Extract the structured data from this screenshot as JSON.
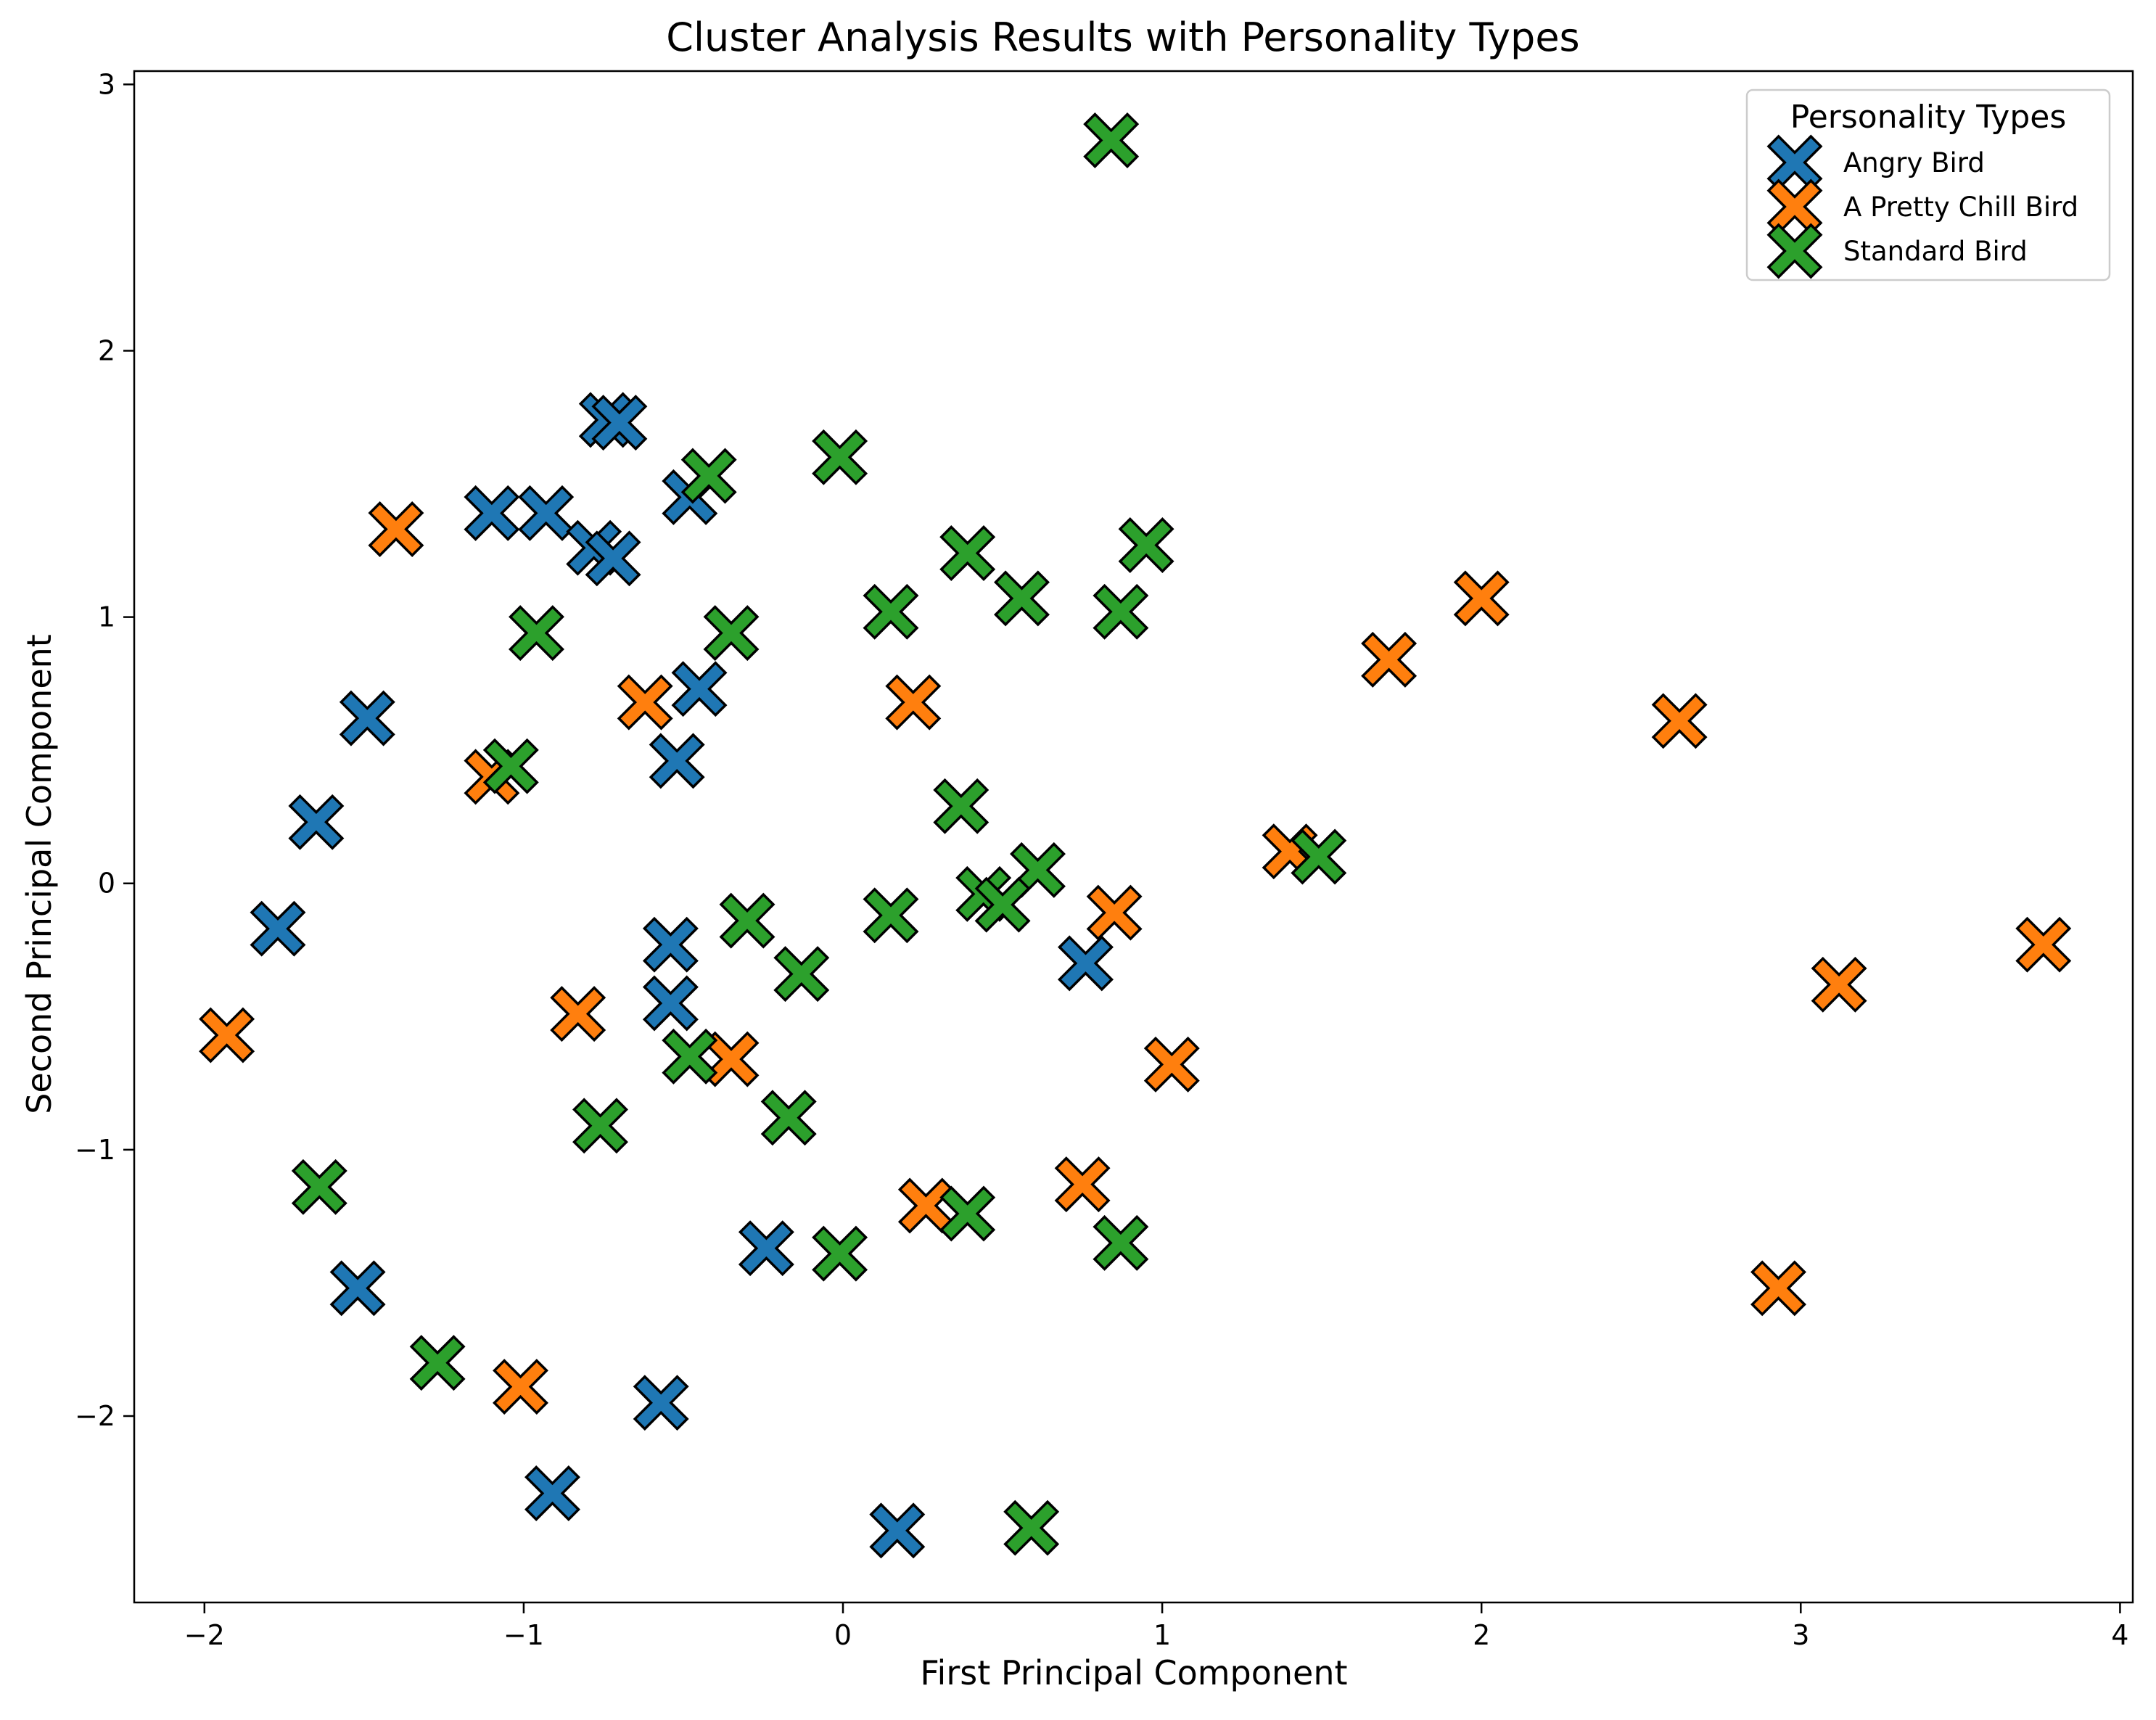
{
  "chart_data": {
    "type": "scatter",
    "title": "Cluster Analysis Results with Personality Types",
    "xlabel": "First Principal Component",
    "ylabel": "Second Principal Component",
    "xlim": [
      -2.22,
      4.04
    ],
    "ylim": [
      -2.7,
      3.05
    ],
    "xticks": [
      -2,
      -1,
      0,
      1,
      2,
      3,
      4
    ],
    "yticks": [
      -2,
      -1,
      0,
      1,
      2,
      3
    ],
    "tick_labels_x": [
      "−2",
      "−1",
      "0",
      "1",
      "2",
      "3",
      "4"
    ],
    "tick_labels_y": [
      "−2",
      "−1",
      "0",
      "1",
      "2",
      "3"
    ],
    "grid": false,
    "legend_position": "top-right",
    "legend_title": "Personality Types",
    "marker": "X",
    "series": [
      {
        "name": "Angry Bird",
        "color": "#1f77b4",
        "points": [
          [
            -0.74,
            1.74
          ],
          [
            -0.7,
            1.73
          ],
          [
            -1.1,
            1.39
          ],
          [
            -0.93,
            1.39
          ],
          [
            -0.78,
            1.26
          ],
          [
            -0.72,
            1.22
          ],
          [
            -0.48,
            1.45
          ],
          [
            -0.45,
            0.73
          ],
          [
            -0.52,
            0.46
          ],
          [
            -1.49,
            0.62
          ],
          [
            -1.65,
            0.23
          ],
          [
            -1.77,
            -0.17
          ],
          [
            -0.54,
            -0.23
          ],
          [
            -0.54,
            -0.45
          ],
          [
            0.76,
            -0.3
          ],
          [
            -0.24,
            -1.37
          ],
          [
            -1.52,
            -1.52
          ],
          [
            -0.57,
            -1.95
          ],
          [
            -0.91,
            -2.29
          ],
          [
            0.17,
            -2.43
          ]
        ]
      },
      {
        "name": "A Pretty Chill Bird",
        "color": "#ff7f0e",
        "points": [
          [
            -1.4,
            1.33
          ],
          [
            -0.62,
            0.68
          ],
          [
            0.22,
            0.68
          ],
          [
            -1.1,
            0.4
          ],
          [
            -1.93,
            -0.57
          ],
          [
            -0.83,
            -0.49
          ],
          [
            -0.35,
            -0.66
          ],
          [
            0.85,
            -0.11
          ],
          [
            1.03,
            -0.68
          ],
          [
            0.26,
            -1.21
          ],
          [
            0.75,
            -1.13
          ],
          [
            -1.01,
            -1.89
          ],
          [
            1.4,
            0.12
          ],
          [
            1.71,
            0.84
          ],
          [
            2.0,
            1.07
          ],
          [
            2.62,
            0.61
          ],
          [
            3.12,
            -0.38
          ],
          [
            3.76,
            -0.23
          ],
          [
            2.93,
            -1.52
          ]
        ]
      },
      {
        "name": "Standard Bird",
        "color": "#2ca02c",
        "points": [
          [
            0.84,
            2.79
          ],
          [
            -0.01,
            1.6
          ],
          [
            -0.42,
            1.53
          ],
          [
            0.39,
            1.24
          ],
          [
            0.95,
            1.27
          ],
          [
            0.56,
            1.07
          ],
          [
            0.87,
            1.02
          ],
          [
            0.15,
            1.02
          ],
          [
            -0.35,
            0.94
          ],
          [
            -0.96,
            0.94
          ],
          [
            -1.04,
            0.44
          ],
          [
            0.37,
            0.29
          ],
          [
            0.61,
            0.05
          ],
          [
            0.44,
            -0.04
          ],
          [
            0.5,
            -0.08
          ],
          [
            0.15,
            -0.12
          ],
          [
            -0.3,
            -0.14
          ],
          [
            -0.13,
            -0.34
          ],
          [
            -0.48,
            -0.65
          ],
          [
            -0.17,
            -0.88
          ],
          [
            -0.76,
            -0.91
          ],
          [
            -1.64,
            -1.14
          ],
          [
            0.39,
            -1.24
          ],
          [
            -0.01,
            -1.39
          ],
          [
            0.87,
            -1.35
          ],
          [
            -1.27,
            -1.8
          ],
          [
            0.59,
            -2.42
          ],
          [
            1.49,
            0.1
          ]
        ]
      }
    ]
  }
}
